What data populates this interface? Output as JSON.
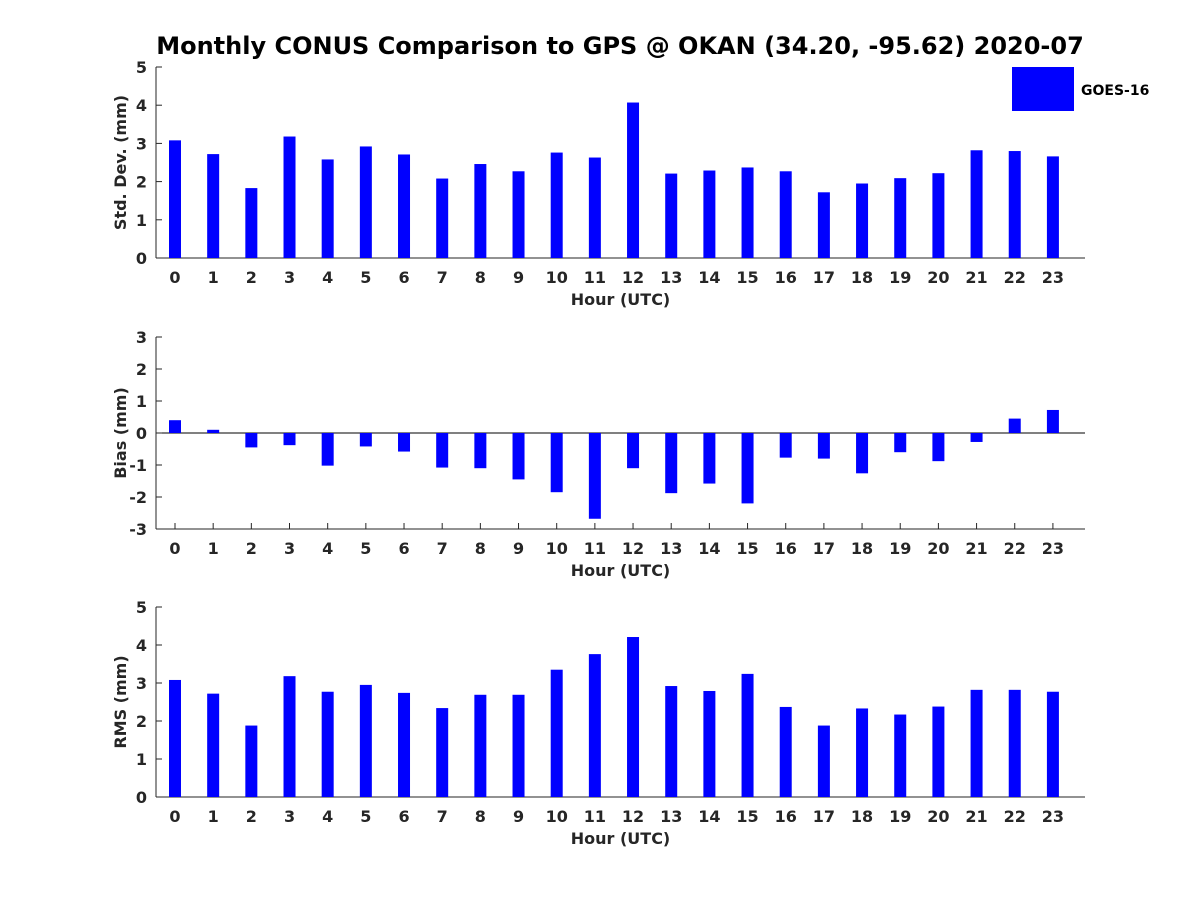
{
  "chart_data": {
    "type": "bar",
    "title": "Monthly CONUS Comparison to GPS @ OKAN (34.20, -95.62) 2020-07",
    "legend": {
      "label": "GOES-16",
      "placement": "top-right"
    },
    "bar_color": "#0000ff",
    "categories": [
      "0",
      "1",
      "2",
      "3",
      "4",
      "5",
      "6",
      "7",
      "8",
      "9",
      "10",
      "11",
      "12",
      "13",
      "14",
      "15",
      "16",
      "17",
      "18",
      "19",
      "20",
      "21",
      "22",
      "23"
    ],
    "panels": [
      {
        "name": "std-dev",
        "ylabel": "Std. Dev. (mm)",
        "xlabel": "Hour (UTC)",
        "ylim": [
          0,
          5
        ],
        "yticks": [
          "0",
          "1",
          "2",
          "3",
          "4",
          "5"
        ],
        "values": [
          3.08,
          2.72,
          1.83,
          3.18,
          2.58,
          2.92,
          2.71,
          2.08,
          2.46,
          2.27,
          2.76,
          2.63,
          4.07,
          2.21,
          2.29,
          2.37,
          2.27,
          1.72,
          1.95,
          2.09,
          2.22,
          2.82,
          2.8,
          2.66
        ]
      },
      {
        "name": "bias",
        "ylabel": "Bias (mm)",
        "xlabel": "Hour (UTC)",
        "ylim": [
          -3,
          3
        ],
        "yticks": [
          "-3",
          "-2",
          "-1",
          "0",
          "1",
          "2",
          "3"
        ],
        "values": [
          0.4,
          0.1,
          -0.45,
          -0.38,
          -1.02,
          -0.42,
          -0.58,
          -1.08,
          -1.1,
          -1.45,
          -1.85,
          -2.68,
          -1.1,
          -1.88,
          -1.58,
          -2.2,
          -0.77,
          -0.8,
          -1.26,
          -0.6,
          -0.88,
          -0.28,
          0.45,
          0.72
        ]
      },
      {
        "name": "rms",
        "ylabel": "RMS (mm)",
        "xlabel": "Hour (UTC)",
        "ylim": [
          0,
          5
        ],
        "yticks": [
          "0",
          "1",
          "2",
          "3",
          "4",
          "5"
        ],
        "values": [
          3.08,
          2.72,
          1.88,
          3.18,
          2.77,
          2.95,
          2.74,
          2.34,
          2.69,
          2.69,
          3.35,
          3.76,
          4.21,
          2.92,
          2.79,
          3.24,
          2.37,
          1.88,
          2.33,
          2.17,
          2.38,
          2.82,
          2.82,
          2.77
        ]
      }
    ]
  }
}
